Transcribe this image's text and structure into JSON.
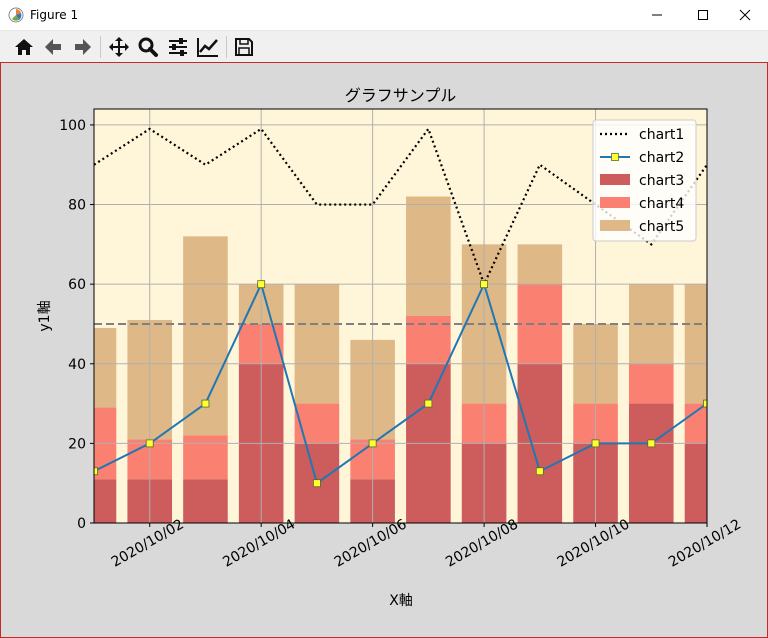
{
  "window": {
    "title": "Figure 1"
  },
  "toolbar": {
    "items": [
      "home-icon",
      "back-icon",
      "forward-icon",
      "pan-icon",
      "zoom-icon",
      "configure-subplots-icon",
      "edit-axis-icon",
      "save-icon"
    ]
  },
  "colors": {
    "figure_bg": "#d9d9d9",
    "axes_bg": "#fff5d9",
    "grid": "#b0b0b0",
    "chart1": "#000000",
    "chart2": "#1f77b4",
    "chart2_marker": "#ffff33",
    "chart3": "#cd5c5c",
    "chart4": "#fa8072",
    "chart5": "#deb887",
    "hline": "#808080"
  },
  "chart_data": {
    "type": "bar",
    "title": "グラフサンプル",
    "xlabel": "X軸",
    "ylabel": "y1軸",
    "ylim": [
      0,
      104
    ],
    "xlim": [
      "2020/10/01",
      "2020/10/12"
    ],
    "yticks": [
      0,
      20,
      40,
      60,
      80,
      100
    ],
    "xticks": [
      "2020/10/02",
      "2020/10/04",
      "2020/10/06",
      "2020/10/08",
      "2020/10/10",
      "2020/10/12"
    ],
    "x": [
      "2020/10/01",
      "2020/10/02",
      "2020/10/03",
      "2020/10/04",
      "2020/10/05",
      "2020/10/06",
      "2020/10/07",
      "2020/10/08",
      "2020/10/09",
      "2020/10/10",
      "2020/10/11",
      "2020/10/12"
    ],
    "grid": true,
    "legend_position": "upper-right",
    "reference_line": 50,
    "series": [
      {
        "name": "chart1",
        "kind": "line",
        "style": "dotted",
        "values": [
          90,
          99,
          90,
          99,
          80,
          80,
          99,
          60,
          90,
          80,
          70,
          90
        ]
      },
      {
        "name": "chart2",
        "kind": "line",
        "marker": "square",
        "values": [
          13,
          20,
          30,
          60,
          10,
          20,
          30,
          60,
          13,
          20,
          20,
          30
        ]
      },
      {
        "name": "chart3",
        "kind": "stacked-bar",
        "values": [
          11,
          11,
          11,
          40,
          20,
          11,
          40,
          20,
          40,
          20,
          30,
          20
        ]
      },
      {
        "name": "chart4",
        "kind": "stacked-bar",
        "values": [
          18,
          10,
          11,
          10,
          10,
          10,
          12,
          10,
          20,
          10,
          10,
          10
        ]
      },
      {
        "name": "chart5",
        "kind": "stacked-bar",
        "values": [
          20,
          30,
          50,
          10,
          30,
          25,
          30,
          40,
          10,
          20,
          20,
          30
        ]
      }
    ]
  }
}
